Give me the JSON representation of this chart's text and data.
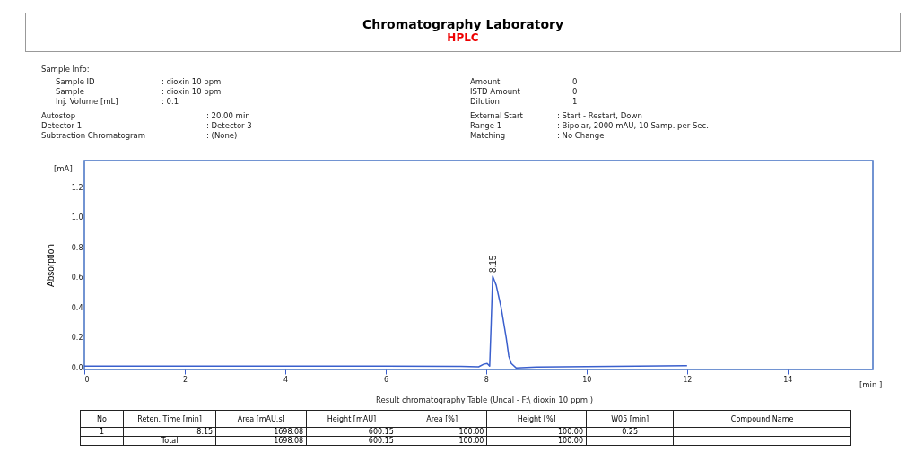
{
  "chart_data": {
    "type": "line",
    "title": "Chromatography Laboratory",
    "subtitle": "HPLC",
    "ylabel": "Absorption",
    "xlim": [
      0,
      15.7
    ],
    "xticks": [
      0,
      2,
      4,
      6,
      8,
      10,
      12,
      14
    ],
    "ylim": [
      -0.01,
      1.38
    ],
    "yticks": [
      {
        "value": 0,
        "label": "0.0"
      },
      0.2,
      0.4,
      0.6,
      0.8,
      {
        "value": 1,
        "label": "1.0"
      },
      1.2
    ],
    "grid": false,
    "marker": "none",
    "line_style": "solid",
    "x": [
      0,
      2,
      4,
      6,
      7.5,
      7.85,
      7.95,
      8.02,
      8.07,
      8.1,
      8.13,
      8.2,
      8.3,
      8.4,
      8.45,
      8.5,
      8.6,
      8.8,
      9,
      10,
      11,
      12
    ],
    "series": [
      {
        "color": "#3a5fcd",
        "values": [
          0.012,
          0.012,
          0.012,
          0.012,
          0.011,
          0.008,
          0.025,
          0.03,
          0.012,
          0.3,
          0.61,
          0.55,
          0.4,
          0.2,
          0.08,
          0.03,
          0,
          0.004,
          0.007,
          0.01,
          0.012,
          0.015
        ]
      }
    ],
    "annotations": [
      "Sample Info:",
      "Sample ID",
      ": dioxin 10 ppm",
      "Sample",
      ": dioxin 10 ppm",
      "Inj. Volume [mL]",
      ": 0.1",
      "Autostop",
      ": 20.00 min",
      "Detector 1",
      ": Detector 3",
      "Subtraction Chromatogram",
      ": (None)",
      "Amount",
      "0",
      "ISTD Amount",
      "0",
      "Dilution",
      "1",
      "External Start",
      ": Start - Restart, Down",
      "Range 1",
      ": Bipolar, 2000 mAU, 10 Samp. per Sec.",
      "Matching",
      ": No Change",
      "[mA]",
      "[min.]",
      "Result chromatography Table (Uncal - F:\\ dioxin 10 ppm )",
      "No",
      "Reten. Time [min]",
      "Area [mAU.s]",
      "Height [mAU]",
      "Area [%]",
      "Height [%]",
      "W05 [min]",
      "Compound Name",
      "1",
      "8.15",
      "1698.08",
      "600.15",
      "100.00",
      "100.00",
      "0.25",
      "Total",
      "1698.08",
      "600.15",
      "100.00",
      "100.00",
      {
        "text": "8.15",
        "x": 8.15,
        "y": 0.61
      }
    ]
  }
}
